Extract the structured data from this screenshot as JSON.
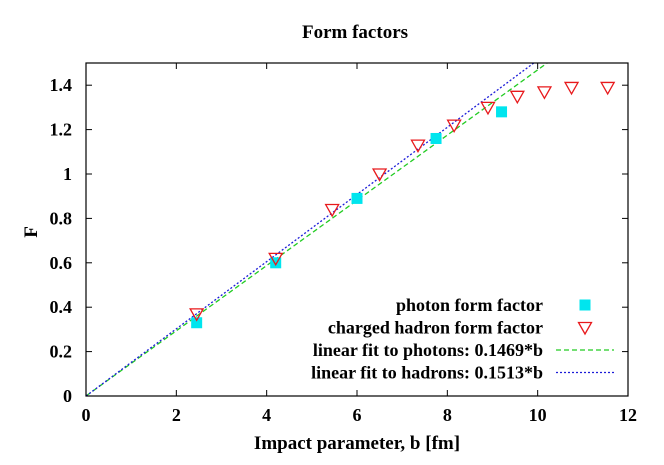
{
  "chart_data": {
    "type": "scatter",
    "title": "Form factors",
    "xlabel": "Impact parameter, b [fm]",
    "ylabel": "F",
    "xlim": [
      0,
      12
    ],
    "ylim": [
      0,
      1.5
    ],
    "x_ticks": [
      0,
      2,
      4,
      6,
      8,
      10,
      12
    ],
    "y_ticks": [
      0,
      0.2,
      0.4,
      0.6,
      0.8,
      1,
      1.2,
      1.4
    ],
    "grid": false,
    "legend_position": "bottom-right",
    "series": [
      {
        "name": "photon form factor",
        "kind": "points",
        "marker": "filled-square",
        "color": "#00e5ee",
        "points": [
          [
            2.45,
            0.33
          ],
          [
            4.2,
            0.6
          ],
          [
            6.0,
            0.89
          ],
          [
            7.75,
            1.16
          ],
          [
            9.2,
            1.28
          ]
        ]
      },
      {
        "name": "charged hadron form factor",
        "kind": "points",
        "marker": "open-triangle-down",
        "color": "#e8191c",
        "points": [
          [
            2.45,
            0.37
          ],
          [
            4.2,
            0.62
          ],
          [
            5.45,
            0.84
          ],
          [
            6.5,
            1.0
          ],
          [
            7.35,
            1.13
          ],
          [
            8.15,
            1.22
          ],
          [
            8.9,
            1.3
          ],
          [
            9.55,
            1.35
          ],
          [
            10.15,
            1.37
          ],
          [
            10.75,
            1.39
          ],
          [
            11.55,
            1.39
          ]
        ]
      },
      {
        "name": "linear fit to photons: 0.1469*b",
        "kind": "line",
        "dash": "dashed",
        "color": "#22cc22",
        "slope": 0.1469
      },
      {
        "name": "linear fit to hadrons: 0.1513*b",
        "kind": "line",
        "dash": "dotted",
        "color": "#1c1cd8",
        "slope": 0.1513
      }
    ]
  }
}
